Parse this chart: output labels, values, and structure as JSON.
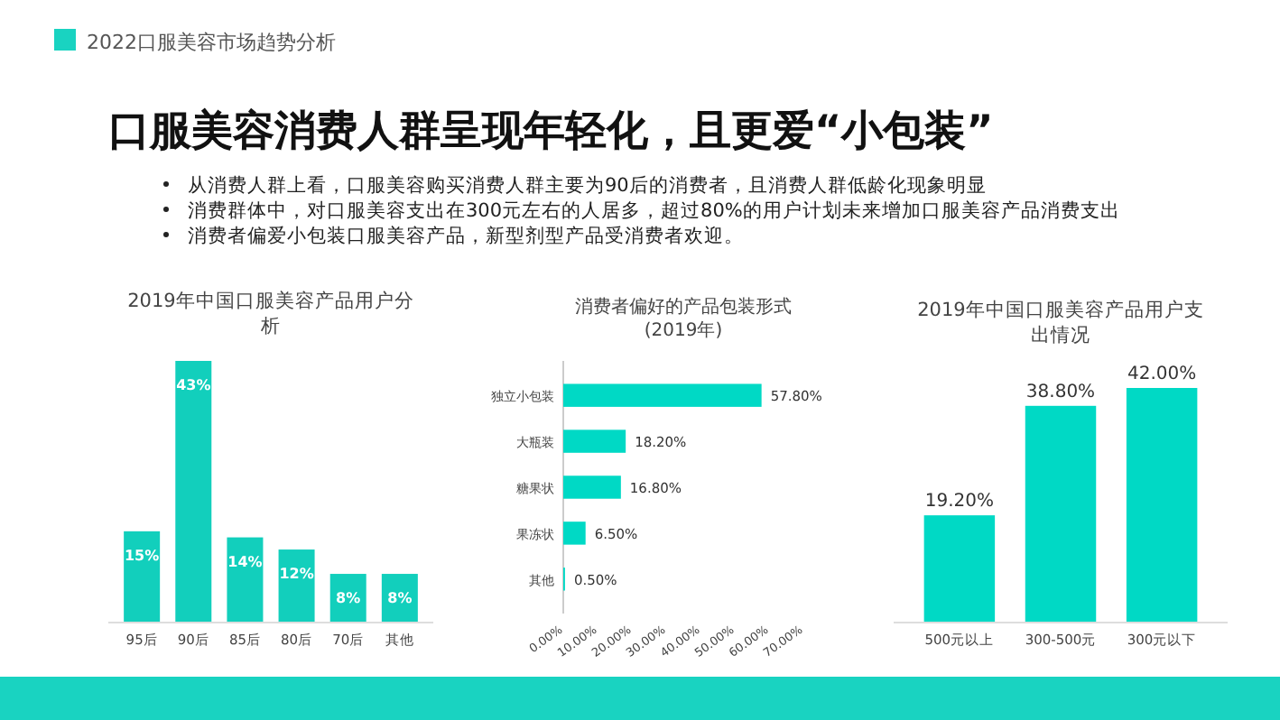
{
  "chart_data": [
    {
      "type": "other",
      "subtitle": "2022口服美容市场趋势分析",
      "title": "口服美容消费人群呈现年轻化，且更爱“小包装”",
      "annotations": [
        "从消费人群上看，口服美容购买消费人群主要为90后的消费者，且消费人群低龄化现象明显",
        "消费群体中，对口服美容支出在300元左右的人居多，超过80%的用户计划未来增加口服美容产品消费支出",
        "消费者偏爱小包装口服美容产品，新型剂型产品受消费者欢迎。"
      ]
    },
    {
      "type": "bar",
      "title": "2019年中国口服美容产品用户分析",
      "categories": [
        "95后",
        "90后",
        "85后",
        "80后",
        "70后",
        "其他"
      ],
      "values": [
        15,
        43,
        14,
        12,
        8,
        8
      ],
      "value_labels": [
        "15%",
        "43%",
        "14%",
        "12%",
        "8%",
        "8%"
      ],
      "color": "#12cfbc"
    },
    {
      "type": "bar",
      "orientation": "horizontal",
      "title": "消费者偏好的产品包装形式(2019年)",
      "categories": [
        "独立小包装",
        "大瓶装",
        "糖果状",
        "果冻状",
        "其他"
      ],
      "values": [
        57.8,
        18.2,
        16.8,
        6.5,
        0.5
      ],
      "value_labels": [
        "57.80%",
        "18.20%",
        "16.80%",
        "6.50%",
        "0.50%"
      ],
      "color": "#00d9c5",
      "xlim": [
        0,
        70
      ],
      "xticks": [
        {
          "value": 0,
          "label": "0.00%"
        },
        {
          "value": 10,
          "label": "10.00%"
        },
        {
          "value": 20,
          "label": "20.00%"
        },
        {
          "value": 30,
          "label": "30.00%"
        },
        {
          "value": 40,
          "label": "40.00%"
        },
        {
          "value": 50,
          "label": "50.00%"
        },
        {
          "value": 60,
          "label": "60.00%"
        },
        {
          "value": 70,
          "label": "70.00%"
        }
      ]
    },
    {
      "type": "bar",
      "title": "2019年中国口服美容产品用户支出情况",
      "categories": [
        "500元以上",
        "300-500元",
        "300元以下"
      ],
      "values": [
        19.2,
        38.8,
        42.0
      ],
      "value_labels": [
        "19.20%",
        "38.80%",
        "42.00%"
      ],
      "color": "#00d9c5"
    }
  ]
}
